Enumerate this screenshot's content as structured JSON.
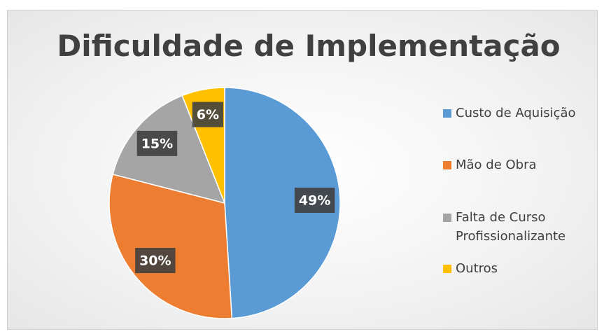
{
  "chart_data": {
    "type": "pie",
    "title": "Dificuldade de Implementação",
    "categories": [
      "Custo de Aquisição",
      "Mão de Obra",
      "Falta de Curso Profissionalizante",
      "Outros"
    ],
    "values": [
      49,
      30,
      15,
      6
    ],
    "value_labels": [
      "49%",
      "30%",
      "15%",
      "6%"
    ],
    "colors": [
      "#5b9bd5",
      "#ed7d31",
      "#a5a5a5",
      "#ffc000"
    ],
    "legend": "right"
  }
}
